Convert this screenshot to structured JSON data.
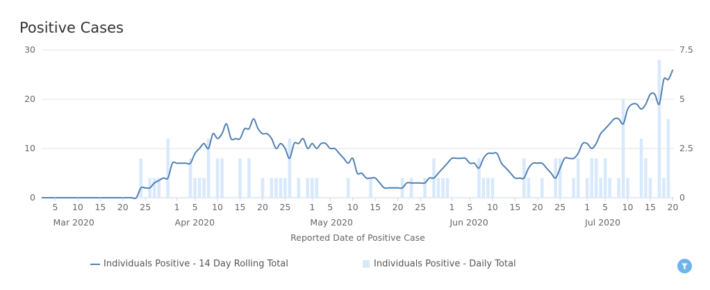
{
  "title": "Positive Cases",
  "colors": {
    "line": "#4f7fb3",
    "bar": "#d8e9fb",
    "grid": "#e3e3e3",
    "filter": "#6cb5ec"
  },
  "legend": {
    "line_label": "Individuals Positive - 14 Day Rolling Total",
    "bar_label": "Individuals Positive - Daily Total"
  },
  "filter_icon": "filter-icon",
  "chart_data": {
    "type": "line+bar",
    "title": "Positive Cases",
    "xlabel": "Reported Date of Positive Case",
    "start_date": "2020-03-02",
    "x_ticks": [
      {
        "date": "2020-03-05",
        "label": "5"
      },
      {
        "date": "2020-03-10",
        "label": "10"
      },
      {
        "date": "2020-03-15",
        "label": "15"
      },
      {
        "date": "2020-03-20",
        "label": "20"
      },
      {
        "date": "2020-03-25",
        "label": "25"
      },
      {
        "date": "2020-04-01",
        "label": "1"
      },
      {
        "date": "2020-04-05",
        "label": "5"
      },
      {
        "date": "2020-04-10",
        "label": "10"
      },
      {
        "date": "2020-04-15",
        "label": "15"
      },
      {
        "date": "2020-04-20",
        "label": "20"
      },
      {
        "date": "2020-04-25",
        "label": "25"
      },
      {
        "date": "2020-05-01",
        "label": "1"
      },
      {
        "date": "2020-05-05",
        "label": "5"
      },
      {
        "date": "2020-05-10",
        "label": "10"
      },
      {
        "date": "2020-05-15",
        "label": "15"
      },
      {
        "date": "2020-05-20",
        "label": "20"
      },
      {
        "date": "2020-05-25",
        "label": "25"
      },
      {
        "date": "2020-06-01",
        "label": "1"
      },
      {
        "date": "2020-06-05",
        "label": "5"
      },
      {
        "date": "2020-06-10",
        "label": "10"
      },
      {
        "date": "2020-06-15",
        "label": "15"
      },
      {
        "date": "2020-06-20",
        "label": "20"
      },
      {
        "date": "2020-06-25",
        "label": "25"
      },
      {
        "date": "2020-07-01",
        "label": "1"
      },
      {
        "date": "2020-07-05",
        "label": "5"
      },
      {
        "date": "2020-07-10",
        "label": "10"
      },
      {
        "date": "2020-07-15",
        "label": "15"
      },
      {
        "date": "2020-07-20",
        "label": "20"
      }
    ],
    "month_labels": [
      {
        "date": "2020-03-05",
        "label": "Mar 2020"
      },
      {
        "date": "2020-04-01",
        "label": "Apr 2020"
      },
      {
        "date": "2020-05-01",
        "label": "May 2020"
      },
      {
        "date": "2020-06-01",
        "label": "Jun 2020"
      },
      {
        "date": "2020-07-01",
        "label": "Jul 2020"
      }
    ],
    "y_left": {
      "ticks": [
        "0",
        "10",
        "20",
        "30"
      ],
      "range": [
        0,
        30
      ]
    },
    "y_right": {
      "ticks": [
        "0",
        "2.5",
        "5",
        "7.5"
      ],
      "range": [
        0,
        7.5
      ]
    },
    "series": [
      {
        "name": "Individuals Positive - 14 Day Rolling Total",
        "type": "line",
        "axis": "left",
        "values": [
          0,
          0,
          0,
          0,
          0,
          0,
          0,
          0,
          0,
          0,
          0,
          0,
          0,
          0,
          0,
          0,
          0,
          0,
          0,
          0,
          0,
          0,
          2,
          2,
          2,
          3,
          3.5,
          4,
          4,
          7,
          7,
          7,
          7,
          7,
          9,
          10,
          11,
          10,
          13,
          12,
          13,
          15,
          12,
          12,
          12,
          14,
          14,
          16,
          14,
          13,
          13,
          12,
          10,
          11,
          10,
          8,
          11,
          11,
          12,
          10,
          11,
          10,
          11,
          11,
          10,
          10,
          9,
          8,
          7,
          8,
          5,
          5,
          4,
          4,
          4,
          3,
          2,
          2,
          2,
          2,
          2,
          3,
          3,
          3,
          3,
          3,
          4,
          4,
          5,
          6,
          7,
          8,
          8,
          8,
          8,
          7,
          7,
          6,
          8,
          9,
          9,
          9,
          7,
          6,
          5,
          4,
          4,
          4,
          6,
          7,
          7,
          7,
          6,
          5,
          4,
          6,
          8,
          8,
          8,
          9,
          11,
          11,
          10,
          11,
          13,
          14,
          15,
          16,
          16,
          15,
          18,
          19,
          19,
          18,
          19,
          21,
          21,
          19,
          24,
          24,
          26
        ]
      },
      {
        "name": "Individuals Positive - Daily Total",
        "type": "bar",
        "axis": "right",
        "points": [
          [
            "2020-03-24",
            2
          ],
          [
            "2020-03-26",
            1
          ],
          [
            "2020-03-27",
            1
          ],
          [
            "2020-03-28",
            1
          ],
          [
            "2020-03-30",
            3
          ],
          [
            "2020-04-04",
            2
          ],
          [
            "2020-04-05",
            1
          ],
          [
            "2020-04-06",
            1
          ],
          [
            "2020-04-07",
            1
          ],
          [
            "2020-04-08",
            3
          ],
          [
            "2020-04-10",
            2
          ],
          [
            "2020-04-11",
            2
          ],
          [
            "2020-04-15",
            2
          ],
          [
            "2020-04-17",
            2
          ],
          [
            "2020-04-20",
            1
          ],
          [
            "2020-04-22",
            1
          ],
          [
            "2020-04-23",
            1
          ],
          [
            "2020-04-24",
            1
          ],
          [
            "2020-04-25",
            1
          ],
          [
            "2020-04-26",
            3
          ],
          [
            "2020-04-28",
            1
          ],
          [
            "2020-04-30",
            1
          ],
          [
            "2020-05-01",
            1
          ],
          [
            "2020-05-02",
            1
          ],
          [
            "2020-05-09",
            1
          ],
          [
            "2020-05-14",
            1
          ],
          [
            "2020-05-21",
            1
          ],
          [
            "2020-05-23",
            1
          ],
          [
            "2020-05-26",
            1
          ],
          [
            "2020-05-28",
            2
          ],
          [
            "2020-05-29",
            1
          ],
          [
            "2020-05-30",
            1
          ],
          [
            "2020-05-31",
            1
          ],
          [
            "2020-06-07",
            2
          ],
          [
            "2020-06-08",
            1
          ],
          [
            "2020-06-09",
            1
          ],
          [
            "2020-06-10",
            1
          ],
          [
            "2020-06-17",
            2
          ],
          [
            "2020-06-18",
            1
          ],
          [
            "2020-06-21",
            1
          ],
          [
            "2020-06-24",
            2
          ],
          [
            "2020-06-25",
            2
          ],
          [
            "2020-06-28",
            1
          ],
          [
            "2020-06-29",
            2
          ],
          [
            "2020-07-01",
            1
          ],
          [
            "2020-07-02",
            2
          ],
          [
            "2020-07-03",
            2
          ],
          [
            "2020-07-04",
            1
          ],
          [
            "2020-07-05",
            2
          ],
          [
            "2020-07-06",
            1
          ],
          [
            "2020-07-08",
            1
          ],
          [
            "2020-07-09",
            5
          ],
          [
            "2020-07-10",
            1
          ],
          [
            "2020-07-13",
            3
          ],
          [
            "2020-07-14",
            2
          ],
          [
            "2020-07-15",
            1
          ],
          [
            "2020-07-17",
            7
          ],
          [
            "2020-07-18",
            1
          ],
          [
            "2020-07-19",
            4
          ]
        ]
      }
    ],
    "grid": true,
    "legend_position": "bottom"
  }
}
